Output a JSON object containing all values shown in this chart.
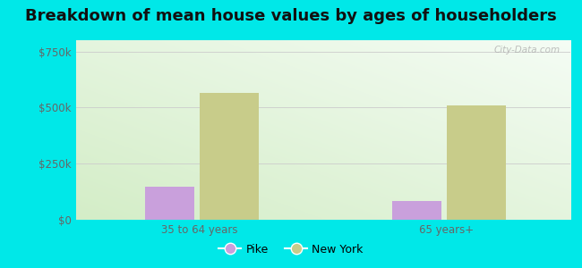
{
  "title": "Breakdown of mean house values by ages of householders",
  "categories": [
    "35 to 64 years",
    "65 years+"
  ],
  "pike_values": [
    148000,
    85000
  ],
  "ny_values": [
    565000,
    510000
  ],
  "pike_color": "#c9a0dc",
  "ny_color": "#c8cc8a",
  "bg_color": "#00e8e8",
  "yticks": [
    0,
    250000,
    500000,
    750000
  ],
  "ytick_labels": [
    "$0",
    "$250k",
    "$500k",
    "$750k"
  ],
  "ylim": [
    0,
    800000
  ],
  "legend_pike": "Pike",
  "legend_ny": "New York",
  "title_fontsize": 13,
  "watermark": "City-Data.com",
  "group_positions": [
    0.25,
    0.75
  ],
  "bar_width": 0.1,
  "xlim": [
    0.0,
    1.0
  ]
}
